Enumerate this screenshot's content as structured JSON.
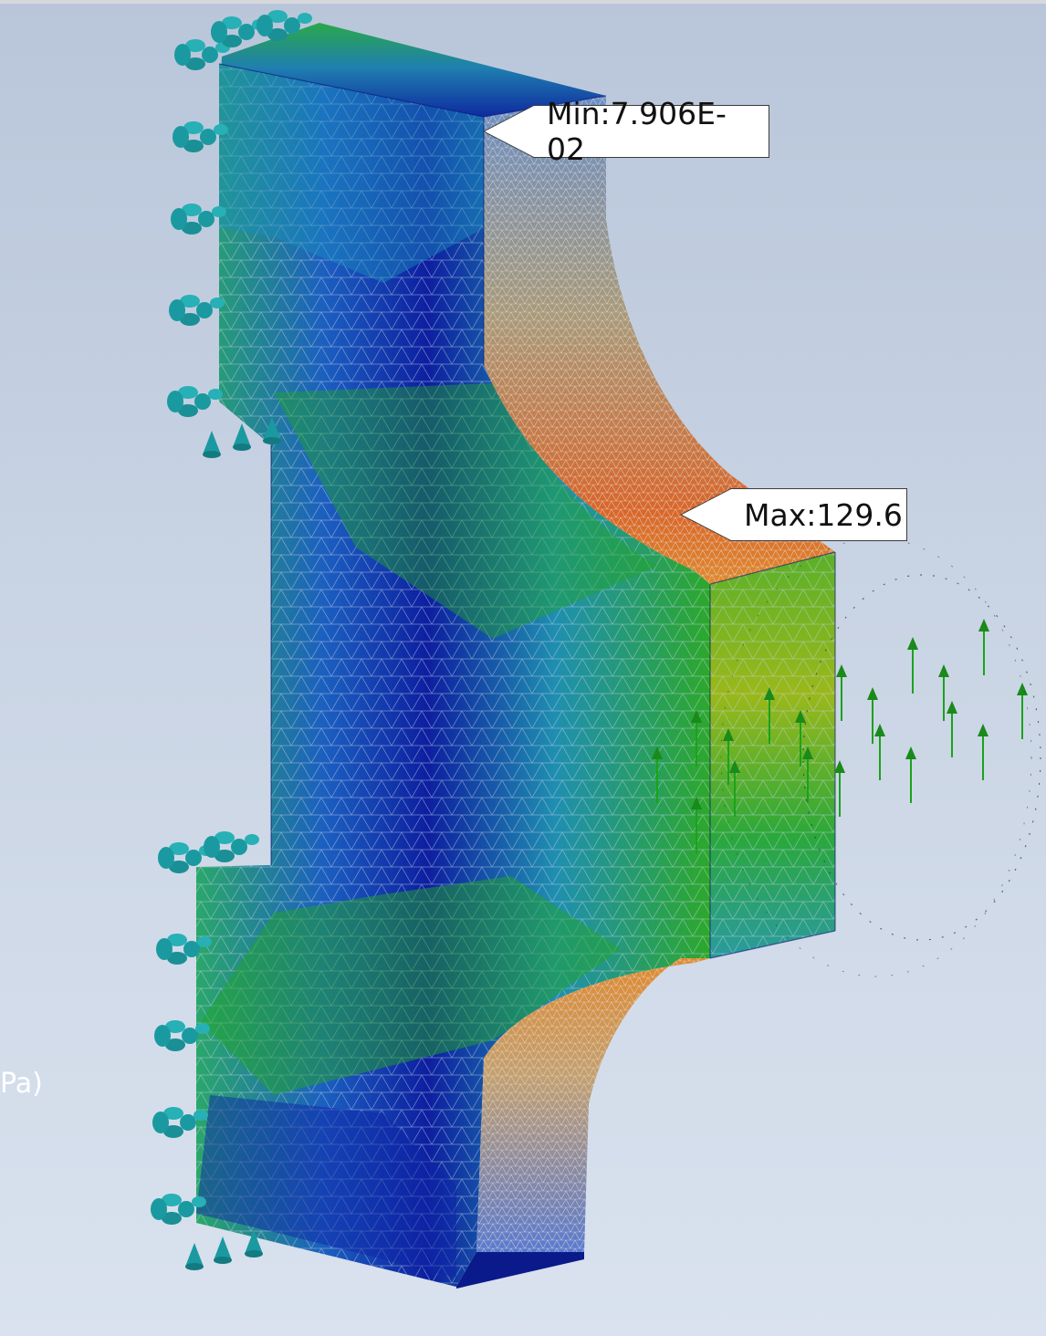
{
  "viewport": {
    "min_label": "Min:7.906E-02",
    "max_label": "Max:129.6",
    "legend_unit_fragment": "Pa)"
  },
  "colors": {
    "background_top": "#b9c6da",
    "background_bottom": "#d9e2ee",
    "stress_low": "#0a1f9c",
    "stress_mid": "#22a32a",
    "stress_high": "#d9662a",
    "constraint": "#1a9aa0",
    "load_arrow": "#1aa31a"
  }
}
